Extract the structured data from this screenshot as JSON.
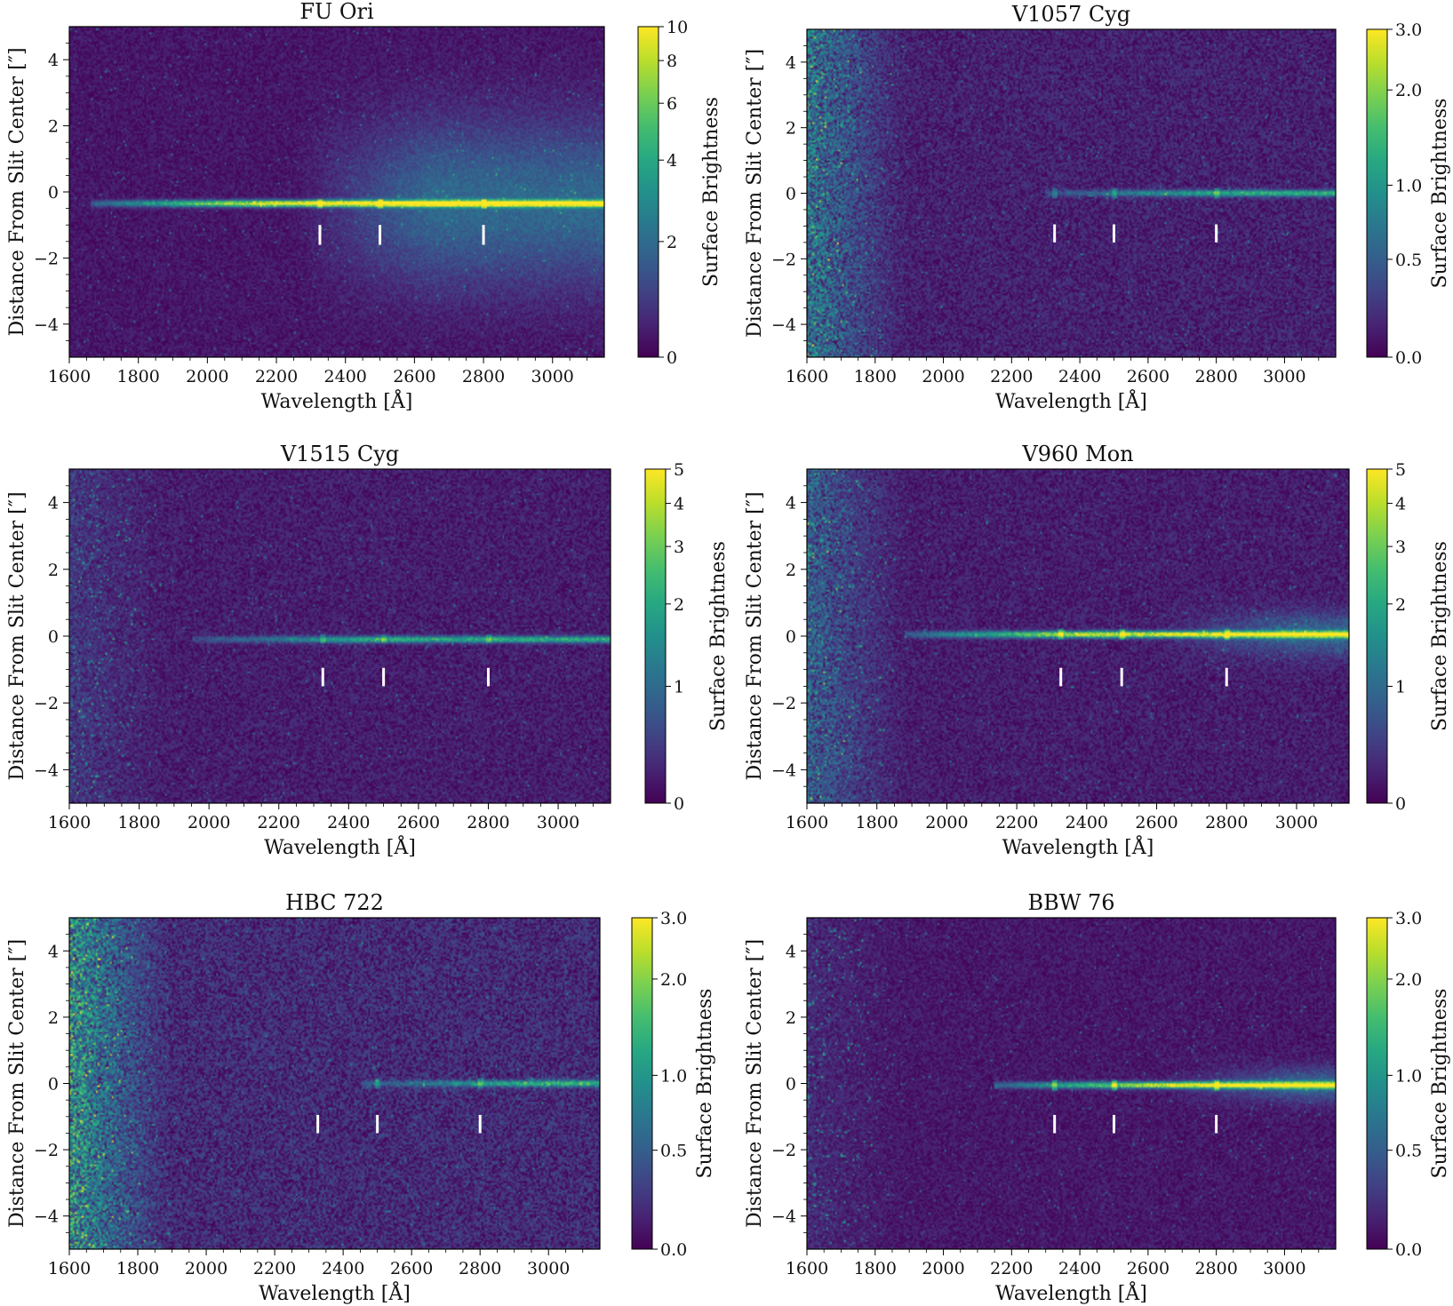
{
  "figure": {
    "layout": "3 rows x 2 columns",
    "colormap": "viridis"
  },
  "colors": {
    "marker": "#ffffff",
    "background_low": "#440154",
    "mid": "#21918c",
    "high": "#fde725"
  },
  "chart_data": [
    {
      "type": "heatmap",
      "title": "FU Ori",
      "xlabel": "Wavelength [Å]",
      "ylabel": "Distance From Slit Center [″]",
      "xlim": [
        1600,
        3150
      ],
      "ylim": [
        -5,
        5
      ],
      "xticks": [
        "1600",
        "1800",
        "2000",
        "2200",
        "2400",
        "2600",
        "2800",
        "3000"
      ],
      "yticks": [
        "−4",
        "−2",
        "0",
        "2",
        "4"
      ],
      "colorbar": {
        "label": "Surface Brightness",
        "ticks": [
          "0",
          "2",
          "4",
          "6",
          "8",
          "10"
        ],
        "max": 10,
        "scale": "asinh"
      },
      "trace": {
        "y_center": -0.35,
        "start": 1660,
        "halo_from": 2250,
        "halo_width": 1.7,
        "strength": 1.0,
        "noise": 0.12,
        "blue_noise": 0.0
      },
      "line_markers": [
        2326,
        2500,
        2800
      ],
      "marker_y_range": [
        -1.6,
        -1.0
      ]
    },
    {
      "type": "heatmap",
      "title": "V1057 Cyg",
      "xlabel": "Wavelength [Å]",
      "ylabel": "Distance From Slit Center [″]",
      "xlim": [
        1600,
        3150
      ],
      "ylim": [
        -5,
        5
      ],
      "xticks": [
        "1600",
        "1800",
        "2000",
        "2200",
        "2400",
        "2600",
        "2800",
        "3000"
      ],
      "yticks": [
        "−4",
        "−2",
        "0",
        "2",
        "4"
      ],
      "colorbar": {
        "label": "Surface Brightness",
        "ticks": [
          "0.0",
          "0.5",
          "1.0",
          "2.0",
          "3.0"
        ],
        "max": 3.0,
        "scale": "asinh"
      },
      "trace": {
        "y_center": 0.0,
        "start": 2300,
        "halo_from": 3200,
        "halo_width": 0.3,
        "strength": 0.55,
        "noise": 0.18,
        "blue_noise": 0.55
      },
      "line_markers": [
        2326,
        2500,
        2800
      ],
      "marker_y_range": [
        -1.5,
        -0.95
      ]
    },
    {
      "type": "heatmap",
      "title": "V1515 Cyg",
      "xlabel": "Wavelength [Å]",
      "ylabel": "Distance From Slit Center [″]",
      "xlim": [
        1600,
        3150
      ],
      "ylim": [
        -5,
        5
      ],
      "xticks": [
        "1600",
        "1800",
        "2000",
        "2200",
        "2400",
        "2600",
        "2800",
        "3000"
      ],
      "yticks": [
        "−4",
        "−2",
        "0",
        "2",
        "4"
      ],
      "colorbar": {
        "label": "Surface Brightness",
        "ticks": [
          "0",
          "1",
          "2",
          "3",
          "4",
          "5"
        ],
        "max": 5,
        "scale": "asinh"
      },
      "trace": {
        "y_center": -0.1,
        "start": 1950,
        "halo_from": 3200,
        "halo_width": 0.3,
        "strength": 0.55,
        "noise": 0.16,
        "blue_noise": 0.15
      },
      "line_markers": [
        2326,
        2500,
        2800
      ],
      "marker_y_range": [
        -1.5,
        -0.95
      ]
    },
    {
      "type": "heatmap",
      "title": "V960 Mon",
      "xlabel": "Wavelength [Å]",
      "ylabel": "Distance From Slit Center [″]",
      "xlim": [
        1600,
        3150
      ],
      "ylim": [
        -5,
        5
      ],
      "xticks": [
        "1600",
        "1800",
        "2000",
        "2200",
        "2400",
        "2600",
        "2800",
        "3000"
      ],
      "yticks": [
        "−4",
        "−2",
        "0",
        "2",
        "4"
      ],
      "colorbar": {
        "label": "Surface Brightness",
        "ticks": [
          "0",
          "1",
          "2",
          "3",
          "4",
          "5"
        ],
        "max": 5,
        "scale": "asinh"
      },
      "trace": {
        "y_center": 0.05,
        "start": 1880,
        "halo_from": 2600,
        "halo_width": 0.45,
        "strength": 0.9,
        "noise": 0.16,
        "blue_noise": 0.4
      },
      "line_markers": [
        2326,
        2500,
        2800
      ],
      "marker_y_range": [
        -1.5,
        -0.95
      ]
    },
    {
      "type": "heatmap",
      "title": "HBC 722",
      "xlabel": "Wavelength [Å]",
      "ylabel": "Distance From Slit Center [″]",
      "xlim": [
        1600,
        3150
      ],
      "ylim": [
        -5,
        5
      ],
      "xticks": [
        "1600",
        "1800",
        "2000",
        "2200",
        "2400",
        "2600",
        "2800",
        "3000"
      ],
      "yticks": [
        "−4",
        "−2",
        "0",
        "2",
        "4"
      ],
      "colorbar": {
        "label": "Surface Brightness",
        "ticks": [
          "0.0",
          "0.5",
          "1.0",
          "2.0",
          "3.0"
        ],
        "max": 3.0,
        "scale": "asinh"
      },
      "trace": {
        "y_center": 0.0,
        "start": 2450,
        "halo_from": 3200,
        "halo_width": 0.3,
        "strength": 0.55,
        "noise": 0.24,
        "blue_noise": 0.7
      },
      "line_markers": [
        2326,
        2500,
        2800
      ],
      "marker_y_range": [
        -1.5,
        -0.95
      ]
    },
    {
      "type": "heatmap",
      "title": "BBW 76",
      "xlabel": "Wavelength [Å]",
      "ylabel": "Distance From Slit Center [″]",
      "xlim": [
        1600,
        3150
      ],
      "ylim": [
        -5,
        5
      ],
      "xticks": [
        "1600",
        "1800",
        "2000",
        "2200",
        "2400",
        "2600",
        "2800",
        "3000"
      ],
      "yticks": [
        "−4",
        "−2",
        "0",
        "2",
        "4"
      ],
      "colorbar": {
        "label": "Surface Brightness",
        "ticks": [
          "0.0",
          "0.5",
          "1.0",
          "2.0",
          "3.0"
        ],
        "max": 3.0,
        "scale": "asinh"
      },
      "trace": {
        "y_center": -0.05,
        "start": 2150,
        "halo_from": 2650,
        "halo_width": 0.35,
        "strength": 0.95,
        "noise": 0.13,
        "blue_noise": 0.1
      },
      "line_markers": [
        2326,
        2500,
        2800
      ],
      "marker_y_range": [
        -1.5,
        -0.95
      ]
    }
  ]
}
